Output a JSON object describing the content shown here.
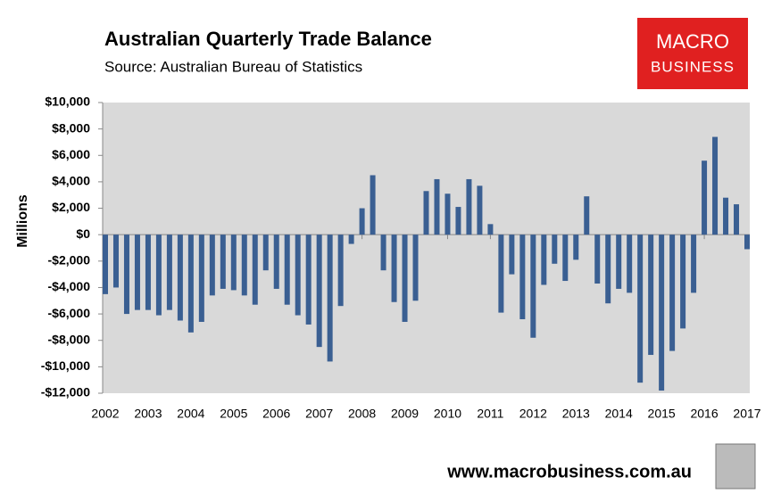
{
  "chart_data": {
    "type": "bar",
    "title": "Australian Quarterly Trade Balance",
    "subtitle": "Source: Australian Bureau of Statistics",
    "y_label": "Millions",
    "logo": {
      "line1": "MACRO",
      "line2": "BUSINESS"
    },
    "footer": "www.macrobusiness.com.au",
    "color": "#3a5f92",
    "categories": [
      "2002",
      null,
      null,
      null,
      "2003",
      null,
      null,
      null,
      "2004",
      null,
      null,
      null,
      "2005",
      null,
      null,
      null,
      "2006",
      null,
      null,
      null,
      "2007",
      null,
      null,
      null,
      "2008",
      null,
      null,
      null,
      "2009",
      null,
      null,
      null,
      "2010",
      null,
      null,
      null,
      "2011",
      null,
      null,
      null,
      "2012",
      null,
      null,
      null,
      "2013",
      null,
      null,
      null,
      "2014",
      null,
      null,
      null,
      "2015",
      null,
      null,
      null,
      "2016",
      null,
      null,
      null,
      "2017"
    ],
    "values": [
      -4500,
      -4000,
      -6000,
      -5700,
      -5700,
      -6100,
      -5700,
      -6500,
      -7400,
      -6600,
      -4600,
      -4100,
      -4200,
      -4600,
      -5300,
      -2700,
      -4100,
      -5300,
      -6100,
      -6800,
      -8500,
      -9600,
      -5400,
      -700,
      2000,
      4500,
      -2700,
      -5100,
      -6600,
      -5000,
      3300,
      4200,
      3100,
      2100,
      4200,
      3700,
      800,
      -5900,
      -3000,
      -6400,
      -7800,
      -3800,
      -2200,
      -3500,
      -1900,
      2900,
      -3700,
      -5200,
      -4100,
      -4400,
      -11200,
      -9100,
      -11800,
      -8800,
      -7100,
      -4400,
      5600,
      7400,
      2800,
      2300,
      -1100
    ],
    "ylim": [
      -12000,
      10000
    ],
    "yticks": [
      {
        "value": -12000,
        "label": "-$12,000"
      },
      {
        "value": -10000,
        "label": "-$10,000"
      },
      {
        "value": -8000,
        "label": "-$8,000"
      },
      {
        "value": -6000,
        "label": "-$6,000"
      },
      {
        "value": -4000,
        "label": "-$4,000"
      },
      {
        "value": -2000,
        "label": "-$2,000"
      },
      {
        "value": 0,
        "label": "$0"
      },
      {
        "value": 2000,
        "label": "$2,000"
      },
      {
        "value": 4000,
        "label": "$4,000"
      },
      {
        "value": 6000,
        "label": "$6,000"
      },
      {
        "value": 8000,
        "label": "$8,000"
      },
      {
        "value": 10000,
        "label": "$10,000"
      }
    ]
  }
}
